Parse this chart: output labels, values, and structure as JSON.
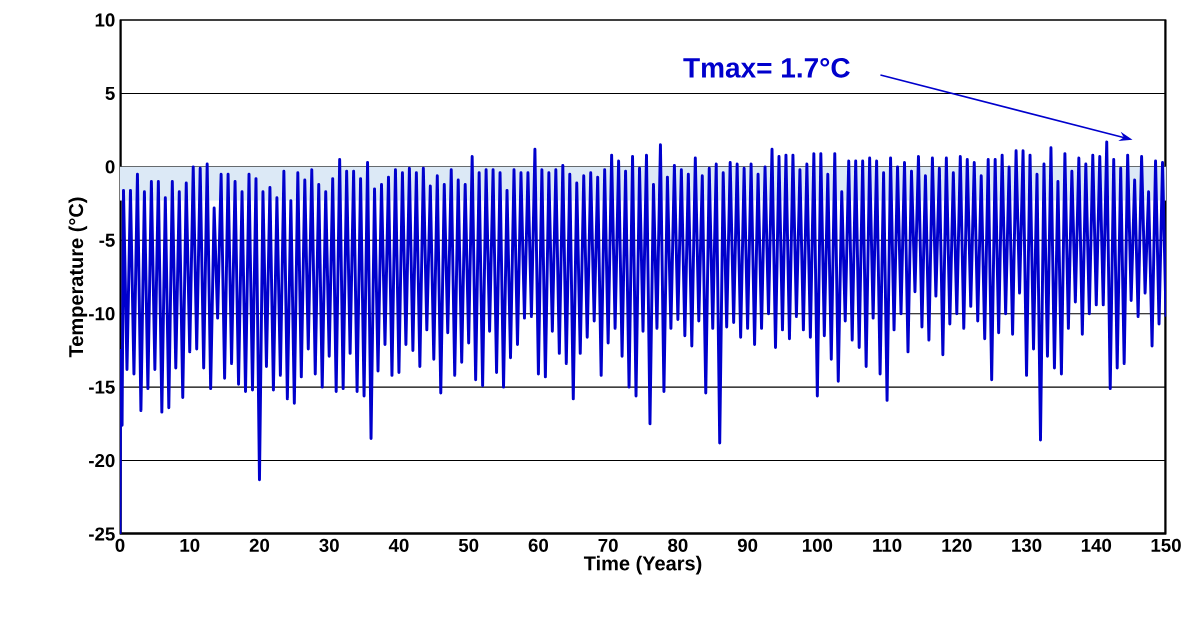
{
  "chart_data": {
    "type": "line",
    "xlabel": "Time (Years)",
    "ylabel": "Temperature (°C)",
    "xlim": [
      0,
      150
    ],
    "xticks": [
      0,
      10,
      20,
      30,
      40,
      50,
      60,
      70,
      80,
      90,
      100,
      110,
      120,
      130,
      140,
      150
    ],
    "ylim": [
      -25,
      10
    ],
    "yticks": [
      -25,
      -20,
      -15,
      -10,
      -5,
      0,
      5,
      10
    ],
    "grid": "y",
    "marker": "none",
    "line_style": "solid",
    "bands": [
      {
        "axis": "y",
        "from": -2.3,
        "to": 0,
        "color": "#dce9f6"
      }
    ],
    "annotations": [
      "Tmax= 1.7°C"
    ],
    "x": [
      0,
      0.1,
      0.2,
      0.3,
      0.5,
      1,
      1.5,
      2,
      2.5,
      3,
      3.5,
      4,
      4.5,
      5,
      5.5,
      6,
      6.5,
      7,
      7.5,
      8,
      8.5,
      9,
      9.5,
      10,
      10.5,
      11,
      11.5,
      12,
      12.5,
      13,
      13.5,
      14,
      14.5,
      15,
      15.5,
      16,
      16.5,
      17,
      17.5,
      18,
      18.5,
      19,
      19.5,
      20,
      20.5,
      21,
      21.5,
      22,
      22.5,
      23,
      23.5,
      24,
      24.5,
      25,
      25.5,
      26,
      26.5,
      27,
      27.5,
      28,
      28.5,
      29,
      29.5,
      30,
      30.5,
      31,
      31.5,
      32,
      32.5,
      33,
      33.5,
      34,
      34.5,
      35,
      35.5,
      36,
      36.5,
      37,
      37.5,
      38,
      38.5,
      39,
      39.5,
      40,
      40.5,
      41,
      41.5,
      42,
      42.5,
      43,
      43.5,
      44,
      44.5,
      45,
      45.5,
      46,
      46.5,
      47,
      47.5,
      48,
      48.5,
      49,
      49.5,
      50,
      50.5,
      51,
      51.5,
      52,
      52.5,
      53,
      53.5,
      54,
      54.5,
      55,
      55.5,
      56,
      56.5,
      57,
      57.5,
      58,
      58.5,
      59,
      59.5,
      60,
      60.5,
      61,
      61.5,
      62,
      62.5,
      63,
      63.5,
      64,
      64.5,
      65,
      65.5,
      66,
      66.5,
      67,
      67.5,
      68,
      68.5,
      69,
      69.5,
      70,
      70.5,
      71,
      71.5,
      72,
      72.5,
      73,
      73.5,
      74,
      74.5,
      75,
      75.5,
      76,
      76.5,
      77,
      77.5,
      78,
      78.5,
      79,
      79.5,
      80,
      80.5,
      81,
      81.5,
      82,
      82.5,
      83,
      83.5,
      84,
      84.5,
      85,
      85.5,
      86,
      86.5,
      87,
      87.5,
      88,
      88.5,
      89,
      89.5,
      90,
      90.5,
      91,
      91.5,
      92,
      92.5,
      93,
      93.5,
      94,
      94.5,
      95,
      95.5,
      96,
      96.5,
      97,
      97.5,
      98,
      98.5,
      99,
      99.5,
      100,
      100.5,
      101,
      101.5,
      102,
      102.5,
      103,
      103.5,
      104,
      104.5,
      105,
      105.5,
      106,
      106.5,
      107,
      107.5,
      108,
      108.5,
      109,
      109.5,
      110,
      110.5,
      111,
      111.5,
      112,
      112.5,
      113,
      113.5,
      114,
      114.5,
      115,
      115.5,
      116,
      116.5,
      117,
      117.5,
      118,
      118.5,
      119,
      119.5,
      120,
      120.5,
      121,
      121.5,
      122,
      122.5,
      123,
      123.5,
      124,
      124.5,
      125,
      125.5,
      126,
      126.5,
      127,
      127.5,
      128,
      128.5,
      129,
      129.5,
      130,
      130.5,
      131,
      131.5,
      132,
      132.5,
      133,
      133.5,
      134,
      134.5,
      135,
      135.5,
      136,
      136.5,
      137,
      137.5,
      138,
      138.5,
      139,
      139.5,
      140,
      140.5,
      141,
      141.5,
      142,
      142.5,
      143,
      143.5,
      144,
      144.5,
      145,
      145.5,
      146,
      146.5,
      147,
      147.5,
      148,
      148.5,
      149,
      149.5,
      150
    ],
    "series": [
      {
        "color": "#0000cc",
        "values": [
          -25,
          -12.5,
          -12.6,
          -17.6,
          -1.6,
          -13.8,
          -1.6,
          -14.1,
          -0.5,
          -16.6,
          -1.7,
          -15.1,
          -1.0,
          -13.8,
          -1.0,
          -16.7,
          -2.1,
          -16.4,
          -1.0,
          -13.7,
          -1.7,
          -15.7,
          -1.1,
          -12.6,
          0.0,
          -12.4,
          -0.1,
          -13.7,
          0.2,
          -15.1,
          -2.8,
          -10.3,
          -0.5,
          -14.4,
          -0.5,
          -13.4,
          -1.0,
          -14.8,
          -1.7,
          -15.3,
          -0.5,
          -15.2,
          -0.8,
          -21.3,
          -1.7,
          -13.6,
          -1.4,
          -15.2,
          -2.1,
          -14.2,
          -0.3,
          -15.8,
          -2.3,
          -16.1,
          -0.4,
          -14.3,
          -0.9,
          -12.4,
          -0.2,
          -14.1,
          -1.2,
          -15.0,
          -1.7,
          -12.9,
          -0.8,
          -15.3,
          0.5,
          -15.1,
          -0.3,
          -12.7,
          -0.3,
          -15.3,
          -0.8,
          -15.6,
          0.3,
          -18.5,
          -1.5,
          -13.9,
          -1.2,
          -12.1,
          -0.7,
          -14.2,
          -0.2,
          -14.0,
          -0.4,
          -12.1,
          -0.1,
          -12.5,
          -0.4,
          -13.6,
          -0.1,
          -11.1,
          -1.3,
          -13.1,
          -0.6,
          -15.4,
          -1.2,
          -11.3,
          -0.2,
          -14.2,
          -0.9,
          -13.3,
          -1.2,
          -12.0,
          0.7,
          -14.5,
          -0.4,
          -14.9,
          -0.2,
          -11.2,
          -0.2,
          -14.0,
          -0.4,
          -15.0,
          -1.6,
          -13.0,
          -0.2,
          -12.1,
          -0.4,
          -10.3,
          -0.4,
          -10.2,
          1.2,
          -14.1,
          -0.2,
          -14.3,
          -0.4,
          -11.2,
          -0.2,
          -12.7,
          0.1,
          -13.4,
          -0.5,
          -15.8,
          -1.1,
          -12.7,
          -0.6,
          -11.6,
          -0.4,
          -10.5,
          -0.7,
          -14.2,
          -0.2,
          -12.0,
          0.8,
          -11.0,
          0.4,
          -12.9,
          -0.3,
          -15.0,
          0.7,
          -15.6,
          -0.1,
          -11.2,
          0.8,
          -17.5,
          -1.2,
          -11.0,
          1.5,
          -15.3,
          -0.7,
          -11.0,
          0.1,
          -10.4,
          -0.2,
          -11.5,
          -0.5,
          -12.2,
          0.6,
          -10.5,
          -0.6,
          -15.4,
          -0.1,
          -11.0,
          0.2,
          -18.8,
          -0.4,
          -10.9,
          0.3,
          -10.6,
          0.2,
          -11.6,
          -0.1,
          -11.0,
          0.2,
          -12.1,
          -0.5,
          -11.0,
          0.0,
          -10.0,
          1.2,
          -12.3,
          0.7,
          -11.1,
          0.8,
          -11.7,
          0.8,
          -10.2,
          -0.2,
          -11.1,
          0.2,
          -11.6,
          0.9,
          -15.6,
          0.9,
          -11.5,
          -0.5,
          -13.1,
          0.9,
          -14.6,
          -1.7,
          -10.5,
          0.4,
          -11.8,
          0.4,
          -12.3,
          0.4,
          -13.6,
          0.6,
          -10.3,
          0.4,
          -14.1,
          -0.4,
          -15.9,
          0.6,
          -11.1,
          0.0,
          -10.0,
          0.3,
          -12.6,
          -0.3,
          -8.5,
          0.7,
          -10.9,
          -0.6,
          -11.8,
          0.6,
          -8.8,
          -0.1,
          -12.8,
          0.6,
          -10.7,
          -0.4,
          -10.0,
          0.7,
          -11.0,
          0.5,
          -9.5,
          0.3,
          -10.5,
          -0.6,
          -11.7,
          0.5,
          -14.5,
          0.5,
          -11.3,
          0.8,
          -10.0,
          0.0,
          -11.4,
          1.1,
          -8.6,
          1.1,
          -14.2,
          0.8,
          -12.4,
          -0.5,
          -18.6,
          0.2,
          -12.9,
          1.3,
          -13.7,
          -1.0,
          -14.1,
          0.9,
          -11.0,
          -0.3,
          -9.2,
          0.6,
          -11.4,
          0.2,
          -10.0,
          0.8,
          -9.4,
          0.7,
          -9.4,
          1.7,
          -15.1,
          0.5,
          -13.7,
          -0.1,
          -13.4,
          0.8,
          -9.1,
          -0.9,
          -10.2,
          0.7,
          -8.6,
          -1.7,
          -12.2,
          0.4,
          -10.7,
          0.3,
          -10.2
        ]
      }
    ]
  }
}
